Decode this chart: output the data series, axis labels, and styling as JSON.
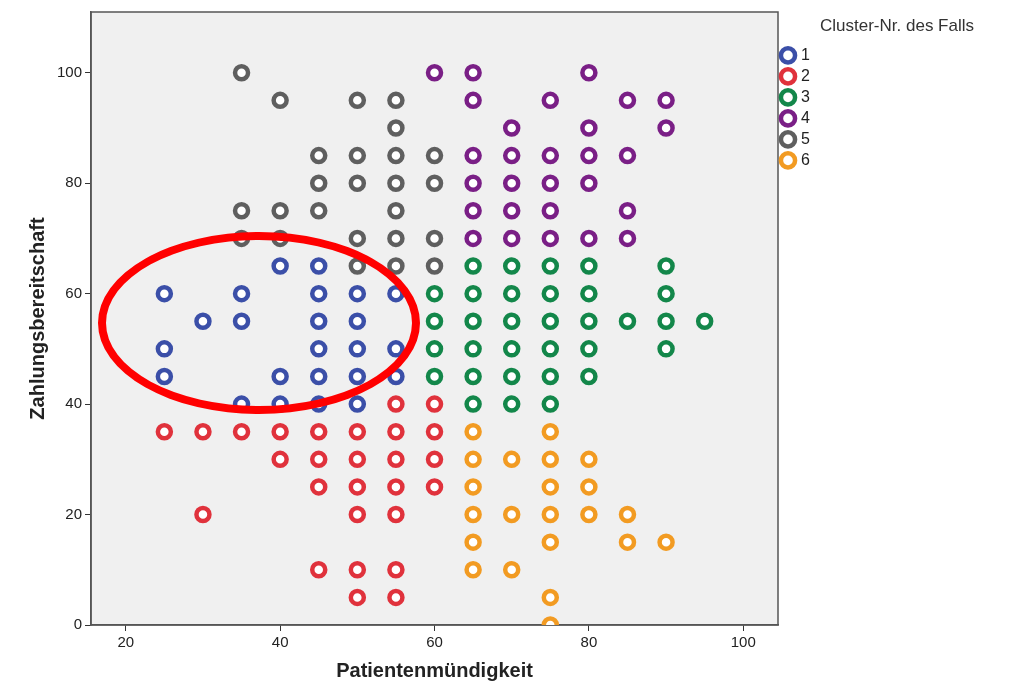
{
  "chart_data": {
    "type": "scatter",
    "xlabel": "Patientenmündigkeit",
    "ylabel": "Zahlungsbereitschaft",
    "legend_title": "Cluster-Nr. des Falls",
    "legend": "top right",
    "grid": false,
    "marker": "circle",
    "xlim": [
      15.5,
      104.5
    ],
    "xticks": [
      20,
      40,
      60,
      80,
      100
    ],
    "ylim": [
      0,
      111
    ],
    "yticks": [
      0,
      20,
      40,
      60,
      80,
      100
    ],
    "series": [
      {
        "name": "1",
        "color": "#3b4fa8",
        "x": [
          40,
          45,
          25,
          35,
          45,
          50,
          55,
          30,
          35,
          45,
          50,
          25,
          45,
          50,
          55,
          25,
          40,
          45,
          50,
          55,
          35,
          40,
          45,
          50
        ],
        "values": [
          65,
          65,
          60,
          60,
          60,
          60,
          60,
          55,
          55,
          55,
          55,
          50,
          50,
          50,
          50,
          45,
          45,
          45,
          45,
          45,
          40,
          40,
          40,
          40
        ]
      },
      {
        "name": "2",
        "color": "#e0323c",
        "x": [
          55,
          60,
          25,
          30,
          35,
          40,
          45,
          50,
          55,
          60,
          40,
          45,
          50,
          55,
          60,
          45,
          50,
          55,
          60,
          30,
          50,
          55,
          45,
          50,
          55,
          50,
          55
        ],
        "values": [
          40,
          40,
          35,
          35,
          35,
          35,
          35,
          35,
          35,
          35,
          30,
          30,
          30,
          30,
          30,
          25,
          25,
          25,
          25,
          20,
          20,
          20,
          10,
          10,
          10,
          5,
          5
        ]
      },
      {
        "name": "3",
        "color": "#13874a",
        "x": [
          65,
          70,
          75,
          80,
          90,
          60,
          65,
          70,
          75,
          80,
          90,
          60,
          65,
          70,
          75,
          80,
          85,
          90,
          95,
          60,
          65,
          70,
          75,
          80,
          90,
          60,
          65,
          70,
          75,
          80,
          65,
          70,
          75
        ],
        "values": [
          65,
          65,
          65,
          65,
          65,
          60,
          60,
          60,
          60,
          60,
          60,
          55,
          55,
          55,
          55,
          55,
          55,
          55,
          55,
          50,
          50,
          50,
          50,
          50,
          50,
          45,
          45,
          45,
          45,
          45,
          40,
          40,
          40
        ]
      },
      {
        "name": "4",
        "color": "#7a1f86",
        "x": [
          60,
          65,
          80,
          65,
          75,
          85,
          90,
          70,
          80,
          90,
          65,
          70,
          75,
          80,
          85,
          65,
          70,
          75,
          80,
          65,
          70,
          75,
          85,
          65,
          70,
          75,
          80,
          85
        ],
        "values": [
          100,
          100,
          100,
          95,
          95,
          95,
          95,
          90,
          90,
          90,
          85,
          85,
          85,
          85,
          85,
          80,
          80,
          80,
          80,
          75,
          75,
          75,
          75,
          70,
          70,
          70,
          70,
          70
        ]
      },
      {
        "name": "5",
        "color": "#5f5f5f",
        "x": [
          35,
          40,
          50,
          55,
          55,
          45,
          50,
          55,
          60,
          45,
          50,
          55,
          60,
          35,
          40,
          45,
          55,
          35,
          40,
          50,
          55,
          60,
          50,
          55,
          60
        ],
        "values": [
          100,
          95,
          95,
          95,
          90,
          85,
          85,
          85,
          85,
          80,
          80,
          80,
          80,
          75,
          75,
          75,
          75,
          70,
          70,
          70,
          70,
          70,
          65,
          65,
          65
        ]
      },
      {
        "name": "6",
        "color": "#f29b22",
        "x": [
          65,
          75,
          65,
          70,
          75,
          80,
          65,
          75,
          80,
          65,
          70,
          75,
          80,
          85,
          65,
          75,
          85,
          90,
          65,
          70,
          75,
          75
        ],
        "values": [
          35,
          35,
          30,
          30,
          30,
          30,
          25,
          25,
          25,
          20,
          20,
          20,
          20,
          20,
          15,
          15,
          15,
          15,
          10,
          10,
          5,
          0
        ]
      }
    ]
  }
}
